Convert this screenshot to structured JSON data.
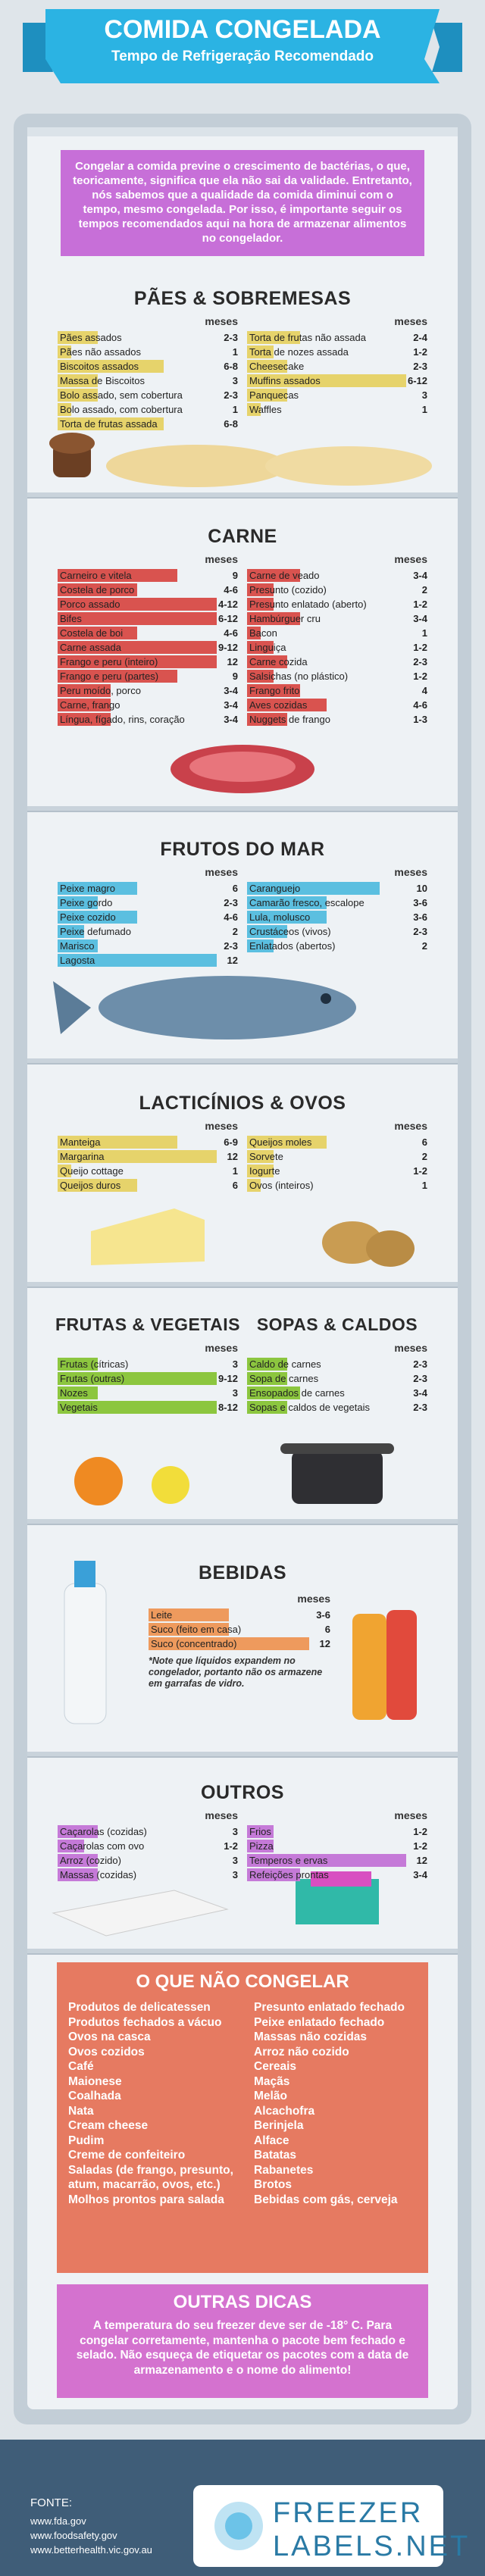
{
  "header": {
    "title": "COMIDA CONGELADA",
    "subtitle": "Tempo de Refrigeração Recomendado"
  },
  "intro": "Congelar a comida previne o crescimento de bactérias, o que, teoricamente, significa que ela não sai da validade. Entretanto, nós sabemos que a qualidade da comida diminui com o tempo, mesmo congelada. Por isso, é importante seguir os tempos recomendados aqui na hora de armazenar alimentos no congelador.",
  "sections": [
    {
      "title": "PÃES & SOBREMESAS",
      "color": "#e6d36b",
      "columns": [
        {
          "unit": "meses",
          "items": [
            {
              "name": "Pães assados",
              "months": "2-3"
            },
            {
              "name": "Pães não assados",
              "months": "1"
            },
            {
              "name": "Biscoitos assados",
              "months": "6-8"
            },
            {
              "name": "Massa de Biscoitos",
              "months": "3"
            },
            {
              "name": "Bolo assado, sem cobertura",
              "months": "2-3"
            },
            {
              "name": "Bolo assado, com cobertura",
              "months": "1"
            },
            {
              "name": "Torta de frutas assada",
              "months": "6-8"
            }
          ]
        },
        {
          "unit": "meses",
          "items": [
            {
              "name": "Torta de frutas não assada",
              "months": "2-4"
            },
            {
              "name": "Torta de nozes assada",
              "months": "1-2"
            },
            {
              "name": "Cheesecake",
              "months": "2-3"
            },
            {
              "name": "Muffins assados",
              "months": "6-12"
            },
            {
              "name": "Panquecas",
              "months": "3"
            },
            {
              "name": "Waffles",
              "months": "1"
            }
          ]
        }
      ]
    },
    {
      "title": "CARNE",
      "color": "#d9534f",
      "columns": [
        {
          "unit": "meses",
          "items": [
            {
              "name": "Carneiro e vitela",
              "months": "9"
            },
            {
              "name": "Costela de porco",
              "months": "4-6"
            },
            {
              "name": "Porco assado",
              "months": "4-12"
            },
            {
              "name": "Bifes",
              "months": "6-12"
            },
            {
              "name": "Costela de boi",
              "months": "4-6"
            },
            {
              "name": "Carne assada",
              "months": "9-12"
            },
            {
              "name": "Frango e peru (inteiro)",
              "months": "12"
            },
            {
              "name": "Frango e peru (partes)",
              "months": "9"
            },
            {
              "name": "Peru moído, porco",
              "months": "3-4"
            },
            {
              "name": "Carne, frango",
              "months": "3-4"
            },
            {
              "name": "Língua, fígado, rins, coração",
              "months": "3-4"
            }
          ]
        },
        {
          "unit": "meses",
          "items": [
            {
              "name": "Carne de veado",
              "months": "3-4"
            },
            {
              "name": "Presunto (cozido)",
              "months": "2"
            },
            {
              "name": "Presunto enlatado (aberto)",
              "months": "1-2"
            },
            {
              "name": "Hambúrguer cru",
              "months": "3-4"
            },
            {
              "name": "Bacon",
              "months": "1"
            },
            {
              "name": "Linguiça",
              "months": "1-2"
            },
            {
              "name": "Carne cozida",
              "months": "2-3"
            },
            {
              "name": "Salsichas (no plástico)",
              "months": "1-2"
            },
            {
              "name": "Frango frito",
              "months": "4"
            },
            {
              "name": "Aves cozidas",
              "months": "4-6"
            },
            {
              "name": "Nuggets de frango",
              "months": "1-3"
            }
          ]
        }
      ]
    },
    {
      "title": "FRUTOS DO MAR",
      "color": "#5bbfe0",
      "columns": [
        {
          "unit": "meses",
          "items": [
            {
              "name": "Peixe magro",
              "months": "6"
            },
            {
              "name": "Peixe gordo",
              "months": "2-3"
            },
            {
              "name": "Peixe cozido",
              "months": "4-6"
            },
            {
              "name": "Peixe defumado",
              "months": "2"
            },
            {
              "name": "Marisco",
              "months": "2-3"
            },
            {
              "name": "Lagosta",
              "months": "12"
            }
          ]
        },
        {
          "unit": "meses",
          "items": [
            {
              "name": "Caranguejo",
              "months": "10"
            },
            {
              "name": "Camarão fresco, escalope",
              "months": "3-6"
            },
            {
              "name": "Lula, molusco",
              "months": "3-6"
            },
            {
              "name": "Crustáceos (vivos)",
              "months": "2-3"
            },
            {
              "name": "Enlatados (abertos)",
              "months": "2"
            }
          ]
        }
      ]
    },
    {
      "title": "LACTICÍNIOS & OVOS",
      "color": "#e6d36b",
      "columns": [
        {
          "unit": "meses",
          "items": [
            {
              "name": "Manteiga",
              "months": "6-9"
            },
            {
              "name": "Margarina",
              "months": "12"
            },
            {
              "name": "Queijo cottage",
              "months": "1"
            },
            {
              "name": "Queijos duros",
              "months": "6"
            }
          ]
        },
        {
          "unit": "meses",
          "items": [
            {
              "name": "Queijos moles",
              "months": "6"
            },
            {
              "name": "Sorvete",
              "months": "2"
            },
            {
              "name": "Iogurte",
              "months": "1-2"
            },
            {
              "name": "Ovos (inteiros)",
              "months": "1"
            }
          ]
        }
      ]
    },
    {
      "color": "#8cc63f",
      "columns": [
        {
          "heading": "FRUTAS & VEGETAIS",
          "unit": "meses",
          "items": [
            {
              "name": "Frutas (cítricas)",
              "months": "3"
            },
            {
              "name": "Frutas (outras)",
              "months": "9-12"
            },
            {
              "name": "Nozes",
              "months": "3"
            },
            {
              "name": "Vegetais",
              "months": "8-12"
            }
          ]
        },
        {
          "heading": "SOPAS & CALDOS",
          "unit": "meses",
          "items": [
            {
              "name": "Caldo de carnes",
              "months": "2-3"
            },
            {
              "name": "Sopa de carnes",
              "months": "2-3"
            },
            {
              "name": "Ensopados de carnes",
              "months": "3-4"
            },
            {
              "name": "Sopas e caldos de vegetais",
              "months": "2-3"
            }
          ]
        }
      ]
    },
    {
      "title": "BEBIDAS",
      "color": "#ee9a5d",
      "columns": [
        {
          "unit": "meses",
          "items": [
            {
              "name": "Leite",
              "months": "3-6"
            },
            {
              "name": "Suco (feito em casa)",
              "months": "6"
            },
            {
              "name": "Suco (concentrado)",
              "months": "12"
            }
          ]
        }
      ],
      "note": "*Note que líquidos expandem no congelador, portanto não os armazene em garrafas de vidro."
    },
    {
      "title": "OUTROS",
      "color": "#c57ad8",
      "columns": [
        {
          "unit": "meses",
          "items": [
            {
              "name": "Caçarolas (cozidas)",
              "months": "3"
            },
            {
              "name": "Caçarolas com ovo",
              "months": "1-2"
            },
            {
              "name": "Arroz (cozido)",
              "months": "3"
            },
            {
              "name": "Massas (cozidas)",
              "months": "3"
            }
          ]
        },
        {
          "unit": "meses",
          "items": [
            {
              "name": "Frios",
              "months": "1-2"
            },
            {
              "name": "Pizza",
              "months": "1-2"
            },
            {
              "name": "Temperos e ervas",
              "months": "12"
            },
            {
              "name": "Refeições prontas",
              "months": "3-4"
            }
          ]
        }
      ]
    }
  ],
  "dont": {
    "title": "O QUE NÃO CONGELAR",
    "left": [
      "Produtos de delicatessen",
      "Produtos fechados a vácuo",
      "Ovos na casca",
      "Ovos cozidos",
      "Café",
      "Maionese",
      "Coalhada",
      "Nata",
      "Cream cheese",
      "Pudim",
      "Creme de confeiteiro",
      "Saladas (de frango, presunto, atum, macarrão, ovos, etc.)",
      "Molhos prontos para salada"
    ],
    "right": [
      "Presunto enlatado fechado",
      "Peixe enlatado fechado",
      "Massas não cozidas",
      "Arroz não cozido",
      "Cereais",
      "Maçãs",
      "Melão",
      "Alcachofra",
      "Berinjela",
      "Alface",
      "Batatas",
      "Rabanetes",
      "Brotos",
      "Bebidas com gás, cerveja"
    ]
  },
  "tips": {
    "title": "OUTRAS DICAS",
    "text": "A temperatura do seu freezer deve ser de -18° C. Para congelar corretamente, mantenha o pacote bem fechado e selado. Não esqueça de etiquetar os pacotes com a data de armazenamento e o nome do alimento!"
  },
  "footer": {
    "source_label": "FONTE:",
    "sources": [
      "www.fda.gov",
      "www.foodsafety.gov",
      "www.betterhealth.vic.gov.au"
    ]
  },
  "logo": {
    "line1": "FREEZER",
    "line2": "LABELS.NET"
  }
}
